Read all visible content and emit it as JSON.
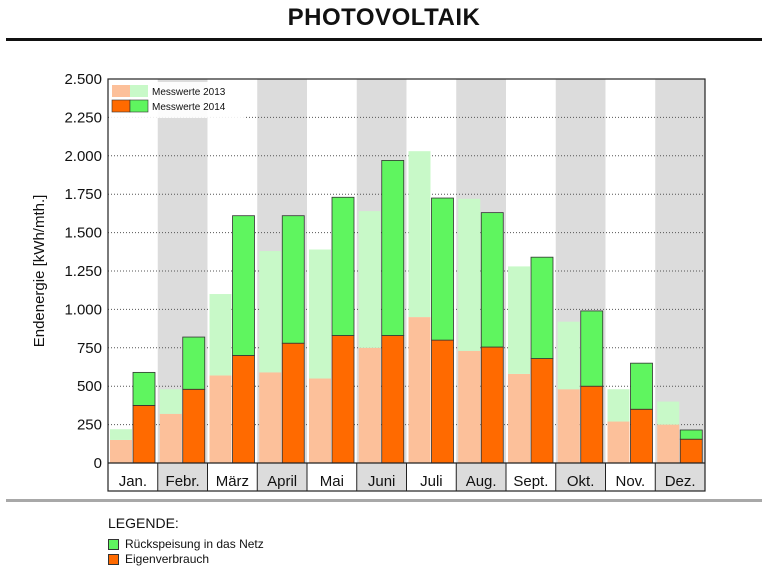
{
  "chart_data": {
    "type": "bar",
    "title": "PHOTOVOLTAIK",
    "ylabel": "Endenergie [kWh/mth.]",
    "xlabel": "",
    "ylim": [
      0,
      2500
    ],
    "yticks": [
      0,
      250,
      500,
      750,
      1000,
      1250,
      1500,
      1750,
      2000,
      2250,
      2500
    ],
    "ytick_labels": [
      "0",
      "250",
      "500",
      "750",
      "1.000",
      "1.250",
      "1.500",
      "1.750",
      "2.000",
      "2.250",
      "2.500"
    ],
    "categories": [
      "Jan.",
      "Febr.",
      "März",
      "April",
      "Mai",
      "Juni",
      "Juli",
      "Aug.",
      "Sept.",
      "Okt.",
      "Nov.",
      "Dez."
    ],
    "stacked": true,
    "grid": "horizontal dotted",
    "legend_position": "top-left",
    "series": [
      {
        "name": "Messwerte 2013",
        "eigenverbrauch": [
          150,
          320,
          570,
          590,
          550,
          750,
          950,
          730,
          580,
          480,
          270,
          250
        ],
        "rueckspeisung": [
          70,
          160,
          530,
          790,
          840,
          890,
          1080,
          990,
          700,
          440,
          210,
          150
        ],
        "colors": {
          "eigenverbrauch": "#fcc09a",
          "rueckspeisung": "#c8f9c8"
        }
      },
      {
        "name": "Messwerte 2014",
        "eigenverbrauch": [
          375,
          480,
          700,
          780,
          830,
          830,
          800,
          755,
          680,
          500,
          350,
          155
        ],
        "rueckspeisung": [
          215,
          340,
          910,
          830,
          900,
          1140,
          925,
          875,
          660,
          490,
          300,
          60
        ],
        "colors": {
          "eigenverbrauch": "#ff6a00",
          "rueckspeisung": "#5ff55f"
        }
      }
    ]
  },
  "legend": {
    "title": "LEGENDE:",
    "items": [
      {
        "label": "Rückspeisung in das Netz",
        "color": "#5ff55f"
      },
      {
        "label": "Eigenverbrauch",
        "color": "#ff6a00"
      }
    ]
  },
  "colors": {
    "band_gray": "#dcdcdc",
    "rule_gray": "#a8a8a8"
  }
}
